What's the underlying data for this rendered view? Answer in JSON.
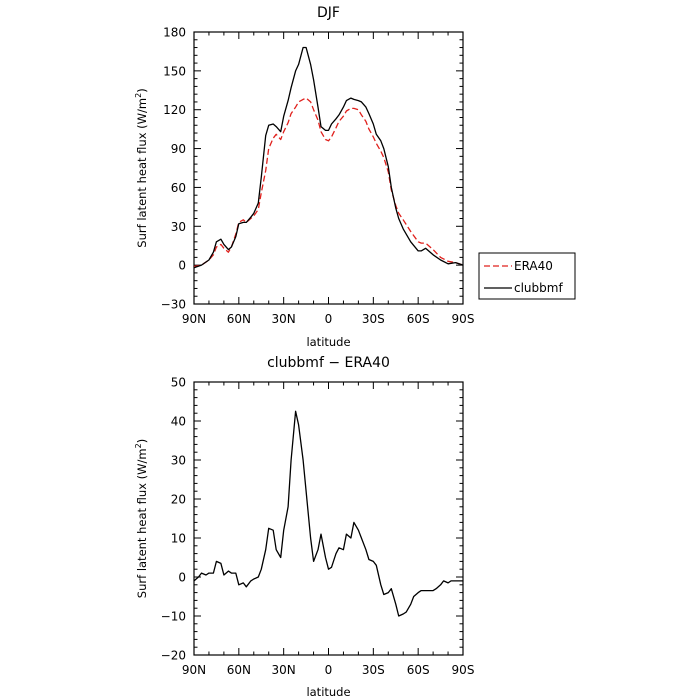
{
  "chart_data": [
    {
      "type": "line",
      "title": "DJF",
      "xlabel": "latitude",
      "ylabel": "Surf latent heat flux (W/m",
      "ylabel_sup": "2",
      "ylabel_tail": ")",
      "xlim": [
        90,
        -90
      ],
      "ylim": [
        -30,
        180
      ],
      "xticks": [
        90,
        60,
        30,
        0,
        -30,
        -60,
        -90
      ],
      "xtick_labels": [
        "90N",
        "60N",
        "30N",
        "0",
        "30S",
        "60S",
        "90S"
      ],
      "yticks": [
        -30,
        0,
        30,
        60,
        90,
        120,
        150,
        180
      ],
      "ytick_labels": [
        "−30",
        "0",
        "30",
        "60",
        "90",
        "120",
        "150",
        "180"
      ],
      "legend": "outside-right",
      "series": [
        {
          "name": "ERA40",
          "color": "#e0201c",
          "dash": true,
          "x": [
            90,
            85,
            80,
            77,
            75,
            72,
            70,
            67,
            65,
            62,
            60,
            57,
            55,
            50,
            47,
            45,
            42,
            40,
            37,
            35,
            32,
            30,
            27,
            25,
            22,
            20,
            17,
            15,
            12,
            10,
            7,
            5,
            2,
            0,
            -2,
            -5,
            -7,
            -10,
            -12,
            -15,
            -17,
            -20,
            -22,
            -25,
            -27,
            -30,
            -32,
            -35,
            -37,
            -40,
            -42,
            -45,
            -47,
            -50,
            -55,
            -60,
            -62,
            -65,
            -70,
            -75,
            -80,
            -85,
            -90
          ],
          "y": [
            -1,
            0,
            4,
            8,
            14,
            16,
            13,
            10,
            14,
            24,
            33,
            35,
            33,
            38,
            43,
            56,
            73,
            90,
            98,
            101,
            97,
            103,
            110,
            117,
            122,
            126,
            128,
            129,
            126,
            120,
            112,
            103,
            97,
            96,
            99,
            106,
            111,
            115,
            119,
            121,
            121,
            120,
            116,
            111,
            105,
            99,
            94,
            88,
            83,
            72,
            58,
            46,
            40,
            35,
            26,
            18,
            17,
            17,
            12,
            6,
            3,
            2,
            0
          ]
        },
        {
          "name": "clubbmf",
          "color": "#000000",
          "dash": false,
          "x": [
            90,
            85,
            80,
            77,
            75,
            72,
            70,
            67,
            65,
            62,
            60,
            57,
            55,
            52,
            50,
            47,
            45,
            42,
            40,
            37,
            35,
            32,
            30,
            27,
            25,
            22,
            20,
            17,
            15,
            12,
            10,
            7,
            5,
            2,
            0,
            -2,
            -5,
            -7,
            -10,
            -12,
            -15,
            -17,
            -20,
            -22,
            -25,
            -27,
            -30,
            -32,
            -35,
            -37,
            -40,
            -42,
            -45,
            -47,
            -50,
            -55,
            -60,
            -62,
            -65,
            -70,
            -75,
            -80,
            -85,
            -90
          ],
          "y": [
            -2,
            0,
            4,
            10,
            18,
            20,
            16,
            12,
            14,
            22,
            32,
            33,
            33,
            37,
            40,
            48,
            68,
            100,
            108,
            109,
            107,
            103,
            115,
            127,
            137,
            150,
            155,
            168,
            168,
            155,
            143,
            122,
            107,
            104,
            104,
            109,
            113,
            116,
            122,
            127,
            129,
            128,
            127,
            126,
            122,
            117,
            109,
            101,
            96,
            90,
            76,
            60,
            44,
            36,
            28,
            18,
            11,
            11,
            13,
            8,
            4,
            1,
            2,
            0
          ]
        }
      ]
    },
    {
      "type": "line",
      "title": "clubbmf − ERA40",
      "xlabel": "latitude",
      "ylabel": "Surf latent heat flux (W/m",
      "ylabel_sup": "2",
      "ylabel_tail": ")",
      "xlim": [
        90,
        -90
      ],
      "ylim": [
        -20,
        50
      ],
      "xticks": [
        90,
        60,
        30,
        0,
        -30,
        -60,
        -90
      ],
      "xtick_labels": [
        "90N",
        "60N",
        "30N",
        "0",
        "30S",
        "60S",
        "90S"
      ],
      "yticks": [
        -20,
        -10,
        0,
        10,
        20,
        30,
        40,
        50
      ],
      "ytick_labels": [
        "−20",
        "−10",
        "0",
        "10",
        "20",
        "30",
        "40",
        "50"
      ],
      "series": [
        {
          "name": "",
          "color": "#000000",
          "dash": false,
          "x": [
            90,
            87,
            85,
            82,
            80,
            77,
            75,
            72,
            70,
            67,
            65,
            62,
            60,
            57,
            55,
            52,
            50,
            47,
            45,
            42,
            40,
            37,
            35,
            32,
            30,
            27,
            25,
            22,
            20,
            17,
            15,
            12,
            10,
            7,
            5,
            2,
            0,
            -2,
            -5,
            -7,
            -10,
            -12,
            -15,
            -17,
            -20,
            -22,
            -25,
            -27,
            -30,
            -32,
            -35,
            -37,
            -40,
            -42,
            -45,
            -47,
            -50,
            -52,
            -55,
            -57,
            -60,
            -62,
            -65,
            -67,
            -70,
            -72,
            -75,
            -77,
            -80,
            -82,
            -85,
            -87,
            -90
          ],
          "y": [
            -1,
            0,
            1,
            0.5,
            1,
            1,
            4,
            3.5,
            0.5,
            1.5,
            1,
            1,
            -2,
            -1.5,
            -2.5,
            -1,
            -0.5,
            0,
            2,
            7,
            12.5,
            12,
            7,
            5,
            12,
            18,
            30,
            42.5,
            39,
            30,
            22,
            10,
            4,
            7,
            11,
            5,
            2,
            2.5,
            6,
            7.5,
            7,
            11,
            10,
            14,
            12,
            10,
            7,
            4.5,
            4,
            3,
            -2,
            -4.5,
            -4,
            -3,
            -7,
            -10,
            -9.5,
            -9,
            -7,
            -5,
            -4,
            -3.5,
            -3.5,
            -3.5,
            -3.5,
            -3,
            -2,
            -1,
            -1.5,
            -1,
            -1,
            -1,
            -1
          ]
        }
      ]
    }
  ]
}
